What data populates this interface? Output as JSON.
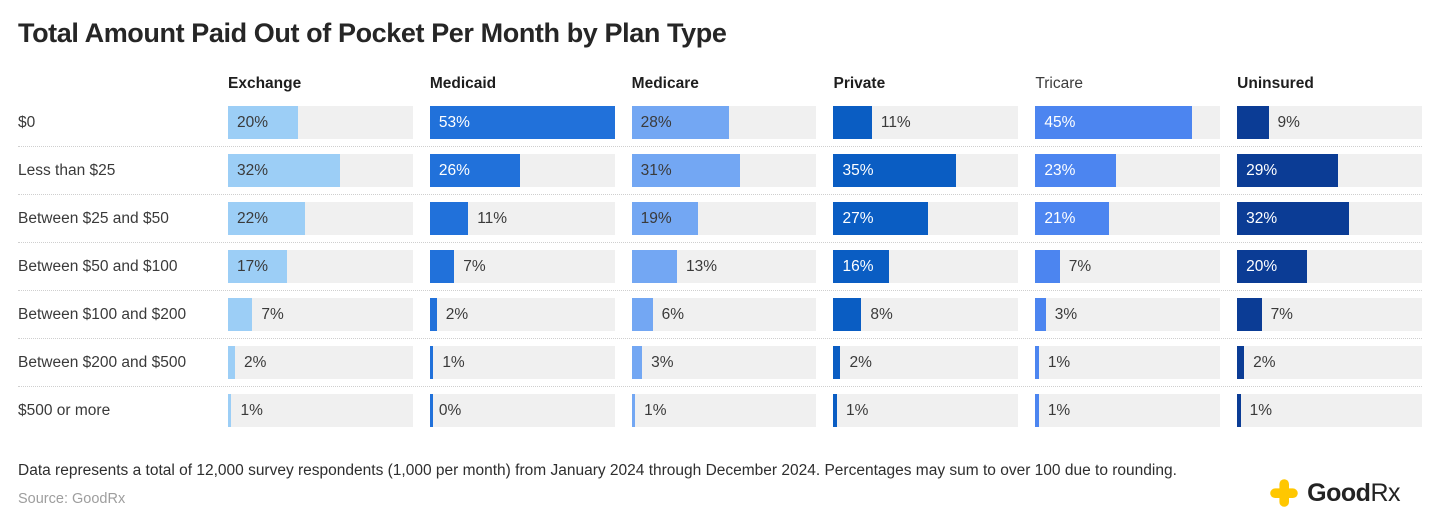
{
  "title": "Total Amount Paid Out of Pocket Per Month by Plan Type",
  "chart_data": {
    "type": "bar",
    "orientation": "horizontal",
    "value_suffix": "%",
    "scale_max": 53,
    "inside_label_threshold": 15,
    "track_color": "#f0f0f0",
    "categories": [
      "$0",
      "Less than $25",
      "Between $25 and $50",
      "Between $50 and $100",
      "Between $100 and $200",
      "Between $200 and $500",
      "$500 or more"
    ],
    "series": [
      {
        "name": "Exchange",
        "color": "#9CCEF6",
        "bold_header": true,
        "light_fill": true,
        "values": [
          20,
          32,
          22,
          17,
          7,
          2,
          1
        ]
      },
      {
        "name": "Medicaid",
        "color": "#2171DA",
        "bold_header": true,
        "light_fill": false,
        "values": [
          53,
          26,
          11,
          7,
          2,
          1,
          0
        ]
      },
      {
        "name": "Medicare",
        "color": "#73A7F3",
        "bold_header": true,
        "light_fill": true,
        "values": [
          28,
          31,
          19,
          13,
          6,
          3,
          1
        ]
      },
      {
        "name": "Private",
        "color": "#0A5DC3",
        "bold_header": true,
        "light_fill": false,
        "values": [
          11,
          35,
          27,
          16,
          8,
          2,
          1
        ]
      },
      {
        "name": "Tricare",
        "color": "#4C85F0",
        "bold_header": false,
        "light_fill": false,
        "values": [
          45,
          23,
          21,
          7,
          3,
          1,
          1
        ]
      },
      {
        "name": "Uninsured",
        "color": "#0B3C95",
        "bold_header": true,
        "light_fill": false,
        "values": [
          9,
          29,
          32,
          20,
          7,
          2,
          1
        ]
      }
    ]
  },
  "footnote": "Data represents a total of 12,000 survey respondents (1,000 per month) from January 2024 through December 2024. Percentages may sum to over 100 due to rounding.",
  "source": "Source: GoodRx",
  "logo": {
    "brand_bold": "Good",
    "brand_light": "Rx",
    "icon_color": "#FFC700"
  }
}
